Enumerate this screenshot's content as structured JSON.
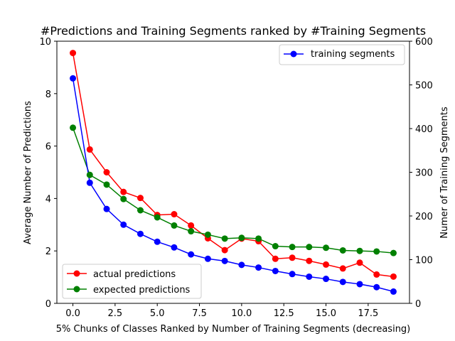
{
  "chart_data": {
    "type": "line",
    "title": "#Predictions and Training Segments ranked by #Training Segments",
    "xlabel": "5% Chunks of Classes Ranked by Number of Training Segments (decreasing)",
    "ylabel_left": "Average Number of Predictions",
    "ylabel_right": "Numer of Training Segments",
    "xlim": [
      -0.95,
      19.95
    ],
    "ylim_left": [
      0,
      10
    ],
    "ylim_right": [
      0,
      600
    ],
    "x_ticks": [
      0.0,
      2.5,
      5.0,
      7.5,
      10.0,
      12.5,
      15.0,
      17.5
    ],
    "x_tick_labels": [
      "0.0",
      "2.5",
      "5.0",
      "7.5",
      "10.0",
      "12.5",
      "15.0",
      "17.5"
    ],
    "y_left_ticks": [
      0,
      2,
      4,
      6,
      8,
      10
    ],
    "y_left_tick_labels": [
      "0",
      "2",
      "4",
      "6",
      "8",
      "10"
    ],
    "y_right_ticks": [
      0,
      100,
      200,
      300,
      400,
      500,
      600
    ],
    "y_right_tick_labels": [
      "0",
      "100",
      "200",
      "300",
      "400",
      "500",
      "600"
    ],
    "grid": false,
    "x": [
      0,
      1,
      2,
      3,
      4,
      5,
      6,
      7,
      8,
      9,
      10,
      11,
      12,
      13,
      14,
      15,
      16,
      17,
      18,
      19
    ],
    "series": [
      {
        "name": "actual predictions",
        "axis": "left",
        "color": "#ff0000",
        "values": [
          9.55,
          5.87,
          5.0,
          4.25,
          4.02,
          3.37,
          3.4,
          2.97,
          2.48,
          2.03,
          2.47,
          2.37,
          1.7,
          1.74,
          1.62,
          1.48,
          1.33,
          1.55,
          1.1,
          1.02
        ]
      },
      {
        "name": "expected predictions",
        "axis": "left",
        "color": "#008000",
        "values": [
          6.7,
          4.9,
          4.53,
          3.98,
          3.55,
          3.28,
          2.97,
          2.75,
          2.62,
          2.47,
          2.5,
          2.47,
          2.18,
          2.15,
          2.15,
          2.12,
          2.02,
          2.0,
          1.98,
          1.92
        ]
      },
      {
        "name": "training segments",
        "axis": "right",
        "color": "#0000ff",
        "values": [
          515,
          276,
          216,
          180,
          159,
          141,
          128,
          112,
          102,
          97,
          88,
          82,
          74,
          67,
          61,
          56,
          49,
          44,
          37,
          27
        ]
      }
    ],
    "legend_left_placement": "lower-left",
    "legend_right_placement": "upper-right"
  }
}
